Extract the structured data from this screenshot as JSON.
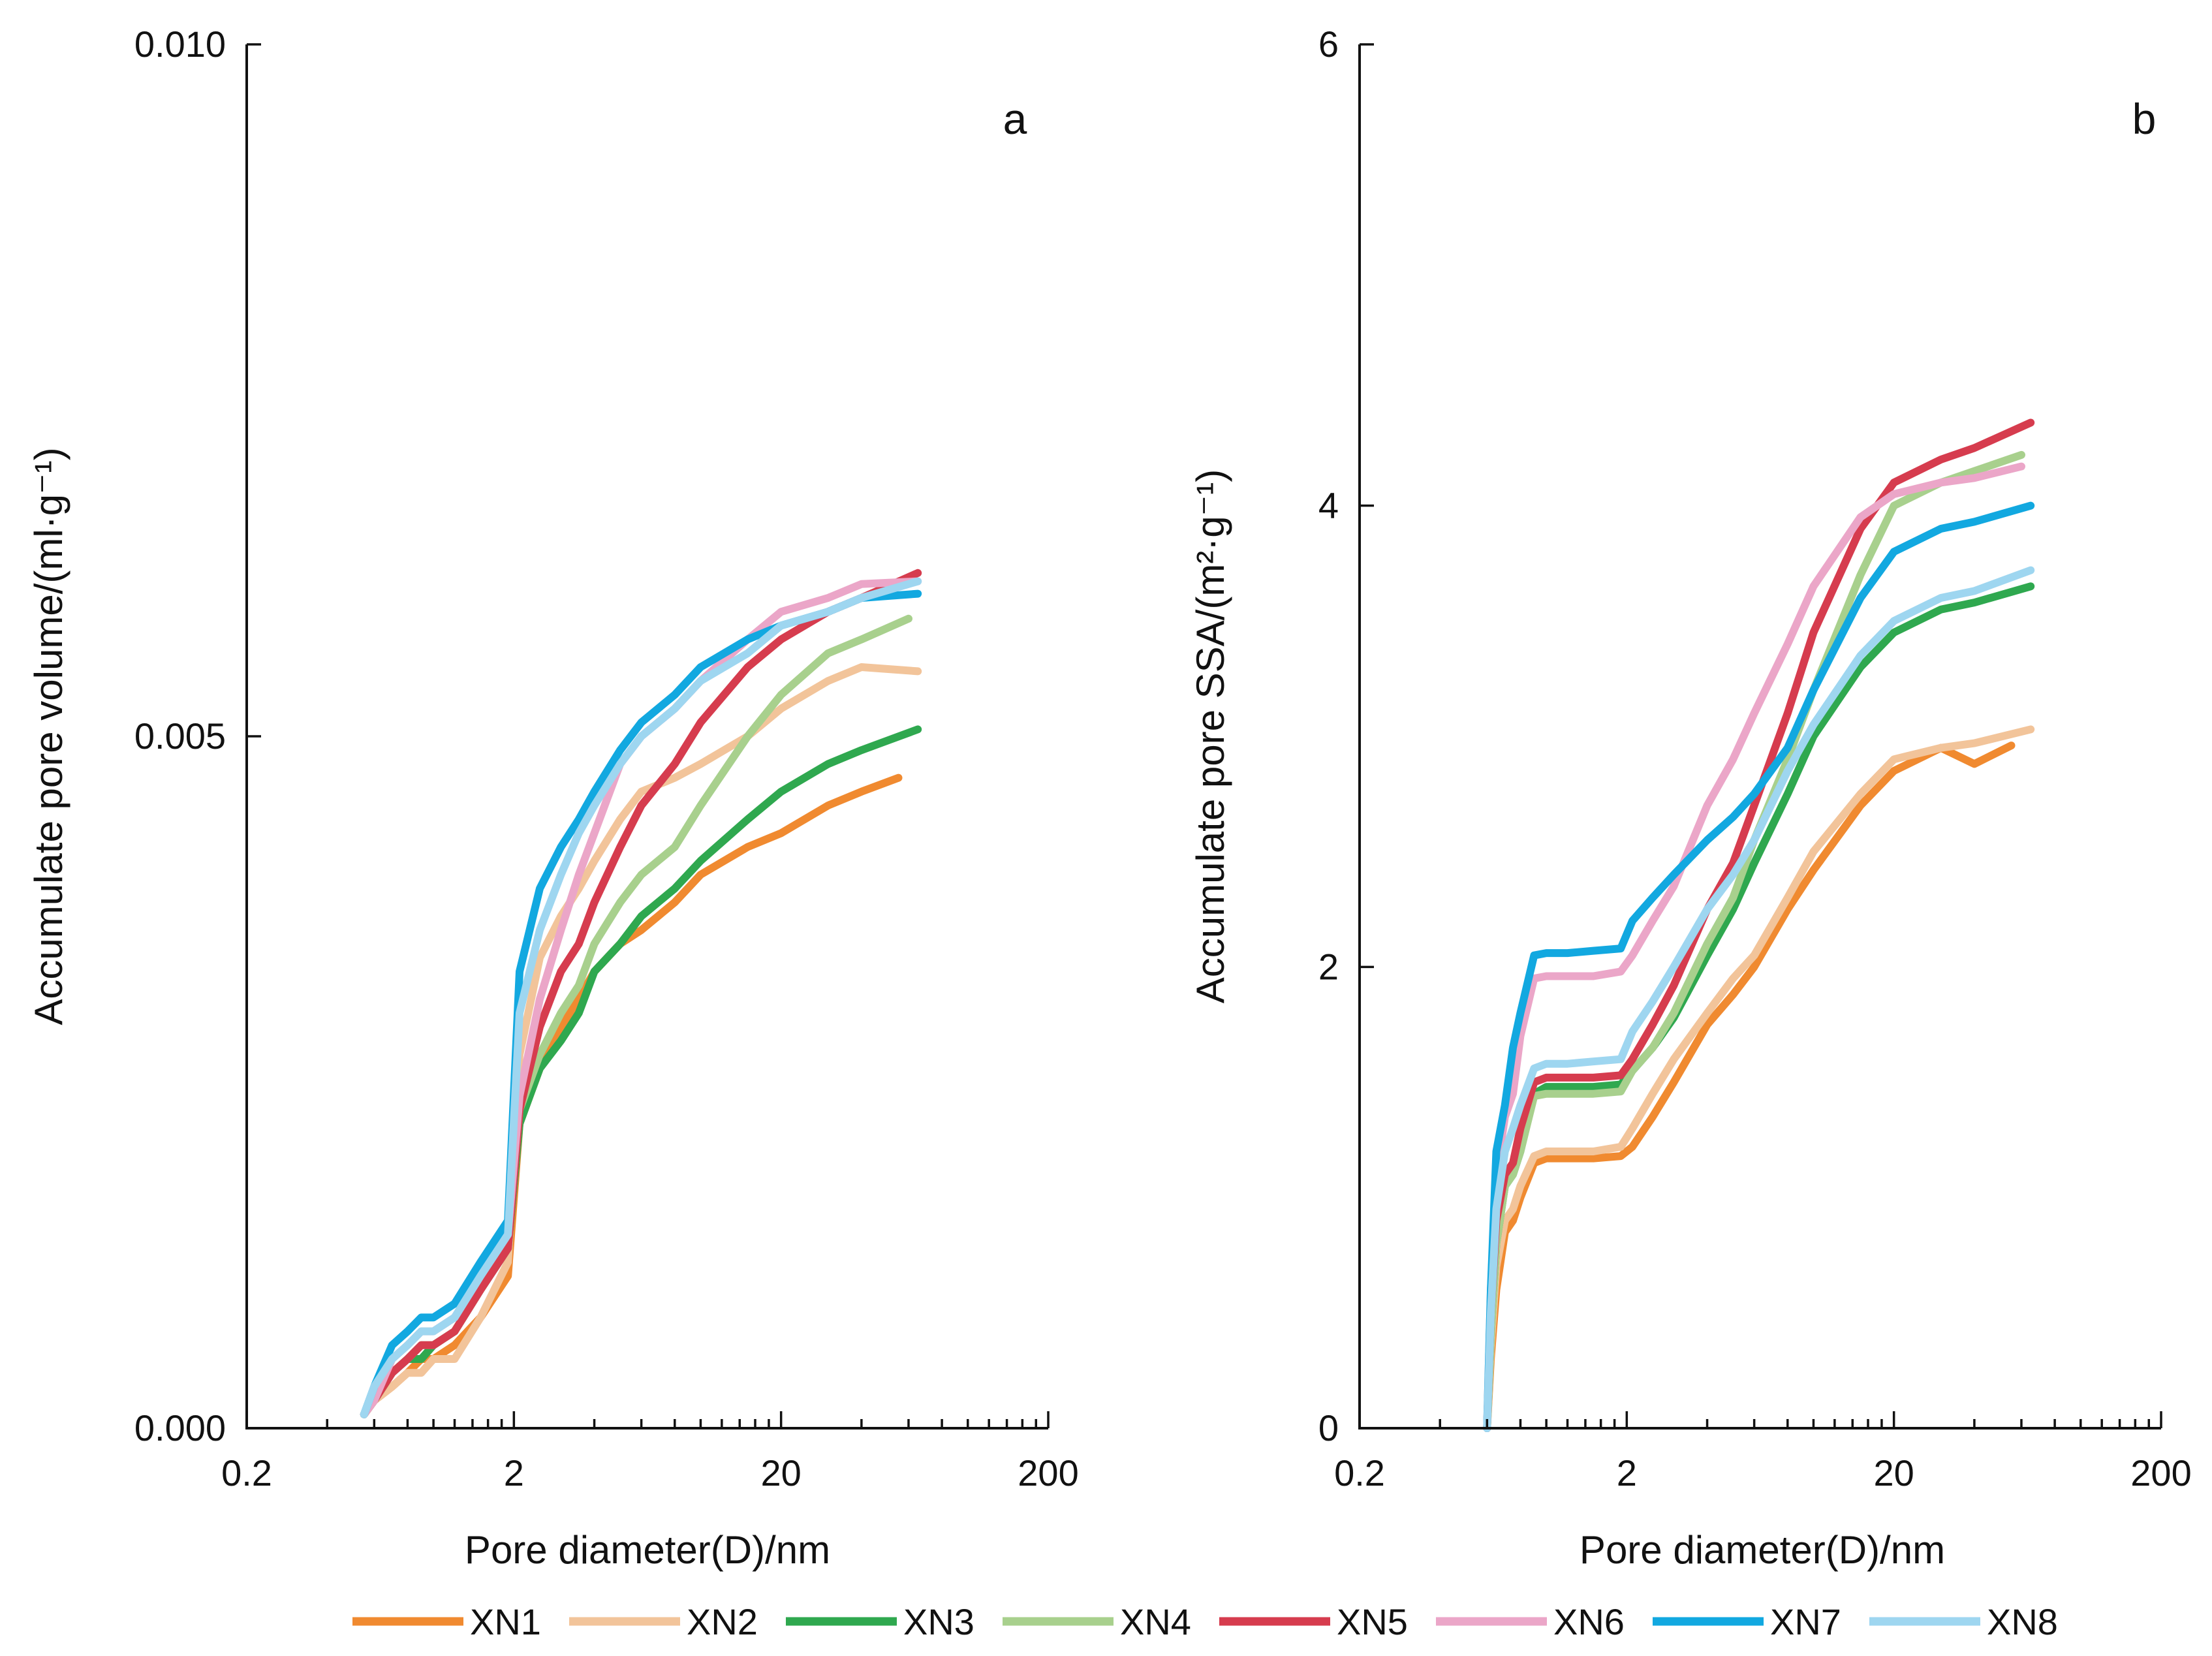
{
  "series_colors": {
    "XN1": "#F08A30",
    "XN2": "#F2C49A",
    "XN3": "#2FA84F",
    "XN4": "#A8D08D",
    "XN5": "#D63C4E",
    "XN6": "#EBA6C8",
    "XN7": "#12A8E0",
    "XN8": "#9ED6F0"
  },
  "chart_data": [
    {
      "type": "line",
      "panel": "a",
      "xscale": "log",
      "xlim": [
        0.2,
        200
      ],
      "ylim": [
        0,
        0.01
      ],
      "xticks": [
        0.2,
        2,
        20,
        200
      ],
      "xtick_labels": [
        "0.2",
        "2",
        "20",
        "200"
      ],
      "yticks": [
        0,
        0.005,
        0.01
      ],
      "ytick_labels": [
        "0.000",
        "0.005",
        "0.010"
      ],
      "xlabel": "Pore diameter(D)/nm",
      "ylabel": "Accumulate pore volume/(ml·g⁻¹)",
      "series": [
        {
          "name": "XN1",
          "x": [
            0.55,
            0.6,
            0.7,
            0.8,
            0.9,
            1.0,
            1.2,
            1.5,
            1.9,
            2.1,
            2.5,
            3.0,
            3.5,
            4.0,
            5.0,
            6.0,
            8.0,
            10,
            15,
            20,
            30,
            40,
            55
          ],
          "y": [
            0.0001,
            0.0002,
            0.0003,
            0.0004,
            0.0005,
            0.0005,
            0.0006,
            0.0008,
            0.0011,
            0.0022,
            0.0026,
            0.0029,
            0.0031,
            0.0033,
            0.0035,
            0.0036,
            0.0038,
            0.004,
            0.0042,
            0.0043,
            0.0045,
            0.0046,
            0.0047
          ]
        },
        {
          "name": "XN2",
          "x": [
            0.55,
            0.6,
            0.7,
            0.8,
            0.9,
            1.0,
            1.2,
            1.5,
            1.9,
            2.1,
            2.5,
            3.0,
            3.5,
            4.0,
            5.0,
            6.0,
            8.0,
            10,
            15,
            20,
            30,
            40,
            65
          ],
          "y": [
            0.0001,
            0.0002,
            0.0003,
            0.0004,
            0.0004,
            0.0005,
            0.0005,
            0.0008,
            0.0012,
            0.0027,
            0.0034,
            0.0037,
            0.0039,
            0.0041,
            0.0044,
            0.0046,
            0.0047,
            0.0048,
            0.005,
            0.0052,
            0.0054,
            0.0055,
            0.00547
          ]
        },
        {
          "name": "XN3",
          "x": [
            0.55,
            0.6,
            0.7,
            0.8,
            0.9,
            1.0,
            1.2,
            1.5,
            1.9,
            2.1,
            2.5,
            3.0,
            3.5,
            4.0,
            5.0,
            6.0,
            8.0,
            10,
            15,
            20,
            30,
            40,
            65
          ],
          "y": [
            0.0001,
            0.0002,
            0.0004,
            0.0005,
            0.0005,
            0.0006,
            0.0007,
            0.001,
            0.0013,
            0.0022,
            0.0026,
            0.0028,
            0.003,
            0.0033,
            0.0035,
            0.0037,
            0.0039,
            0.0041,
            0.0044,
            0.0046,
            0.0048,
            0.0049,
            0.00505
          ]
        },
        {
          "name": "XN4",
          "x": [
            0.55,
            0.6,
            0.7,
            0.8,
            0.9,
            1.0,
            1.2,
            1.5,
            1.9,
            2.1,
            2.5,
            3.0,
            3.5,
            4.0,
            5.0,
            6.0,
            8.0,
            10,
            15,
            20,
            30,
            40,
            60
          ],
          "y": [
            0.0001,
            0.0002,
            0.0004,
            0.0005,
            0.0006,
            0.0006,
            0.0007,
            0.001,
            0.0013,
            0.0023,
            0.0027,
            0.003,
            0.0032,
            0.0035,
            0.0038,
            0.004,
            0.0042,
            0.0045,
            0.005,
            0.0053,
            0.0056,
            0.0057,
            0.00585
          ]
        },
        {
          "name": "XN5",
          "x": [
            0.55,
            0.6,
            0.7,
            0.8,
            0.9,
            1.0,
            1.2,
            1.5,
            1.9,
            2.1,
            2.5,
            3.0,
            3.5,
            4.0,
            5.0,
            6.0,
            8.0,
            10,
            15,
            20,
            30,
            40,
            65
          ],
          "y": [
            0.0001,
            0.0002,
            0.0004,
            0.0005,
            0.0006,
            0.0006,
            0.0007,
            0.001,
            0.0013,
            0.0023,
            0.0029,
            0.0033,
            0.0035,
            0.0038,
            0.0042,
            0.0045,
            0.0048,
            0.0051,
            0.0055,
            0.0057,
            0.0059,
            0.006,
            0.00618
          ]
        },
        {
          "name": "XN6",
          "x": [
            0.55,
            0.6,
            0.7,
            0.8,
            0.9,
            1.0,
            1.2,
            1.5,
            1.9,
            2.1,
            2.5,
            3.0,
            3.5,
            4.0,
            5.0,
            6.0,
            8.0,
            10,
            15,
            20,
            30,
            40,
            65
          ],
          "y": [
            0.0001,
            0.0002,
            0.0005,
            0.0006,
            0.0007,
            0.0007,
            0.0008,
            0.0011,
            0.0014,
            0.0024,
            0.0031,
            0.0036,
            0.004,
            0.0043,
            0.0048,
            0.005,
            0.0052,
            0.0054,
            0.0057,
            0.0059,
            0.006,
            0.0061,
            0.00612
          ]
        },
        {
          "name": "XN7",
          "x": [
            0.55,
            0.6,
            0.7,
            0.8,
            0.9,
            1.0,
            1.2,
            1.5,
            1.9,
            2.1,
            2.5,
            3.0,
            3.5,
            4.0,
            5.0,
            6.0,
            8.0,
            10,
            15,
            20,
            30,
            40,
            65
          ],
          "y": [
            0.0001,
            0.0003,
            0.0006,
            0.0007,
            0.0008,
            0.0008,
            0.0009,
            0.0012,
            0.0015,
            0.0033,
            0.0039,
            0.0042,
            0.0044,
            0.0046,
            0.0049,
            0.0051,
            0.0053,
            0.0055,
            0.0057,
            0.0058,
            0.0059,
            0.006,
            0.00603
          ]
        },
        {
          "name": "XN8",
          "x": [
            0.55,
            0.6,
            0.7,
            0.8,
            0.9,
            1.0,
            1.2,
            1.5,
            1.9,
            2.1,
            2.5,
            3.0,
            3.5,
            4.0,
            5.0,
            6.0,
            8.0,
            10,
            15,
            20,
            30,
            40,
            65
          ],
          "y": [
            0.0001,
            0.0003,
            0.0005,
            0.0006,
            0.0007,
            0.0007,
            0.0008,
            0.0011,
            0.0014,
            0.003,
            0.0036,
            0.004,
            0.0043,
            0.0045,
            0.0048,
            0.005,
            0.0052,
            0.0054,
            0.0056,
            0.0058,
            0.0059,
            0.006,
            0.00612
          ]
        }
      ]
    },
    {
      "type": "line",
      "panel": "b",
      "xscale": "log",
      "xlim": [
        0.2,
        200
      ],
      "ylim": [
        0,
        6
      ],
      "xticks": [
        0.2,
        2,
        20,
        200
      ],
      "xtick_labels": [
        "0.2",
        "2",
        "20",
        "200"
      ],
      "yticks": [
        0,
        2,
        4,
        6
      ],
      "ytick_labels": [
        "0",
        "2",
        "4",
        "6"
      ],
      "xlabel": "Pore diameter(D)/nm",
      "ylabel": "Accumulate pore SSA/(m²·g⁻¹)",
      "series": [
        {
          "name": "XN1",
          "x": [
            0.6,
            0.62,
            0.65,
            0.7,
            0.75,
            0.8,
            0.9,
            1.0,
            1.2,
            1.5,
            1.9,
            2.1,
            2.5,
            3.0,
            4.0,
            5.0,
            6.0,
            8.0,
            10,
            15,
            20,
            30,
            40,
            55
          ],
          "y": [
            0.0,
            0.3,
            0.6,
            0.85,
            0.9,
            1.0,
            1.15,
            1.17,
            1.17,
            1.17,
            1.18,
            1.22,
            1.35,
            1.5,
            1.75,
            1.88,
            2.0,
            2.25,
            2.42,
            2.7,
            2.85,
            2.95,
            2.88,
            2.96
          ]
        },
        {
          "name": "XN2",
          "x": [
            0.6,
            0.62,
            0.65,
            0.7,
            0.75,
            0.8,
            0.9,
            1.0,
            1.2,
            1.5,
            1.9,
            2.1,
            2.5,
            3.0,
            4.0,
            5.0,
            6.0,
            8.0,
            10,
            15,
            20,
            30,
            40,
            65
          ],
          "y": [
            0.0,
            0.35,
            0.7,
            0.9,
            0.95,
            1.05,
            1.18,
            1.2,
            1.2,
            1.2,
            1.22,
            1.3,
            1.45,
            1.6,
            1.8,
            1.95,
            2.05,
            2.3,
            2.5,
            2.75,
            2.9,
            2.95,
            2.97,
            3.03
          ]
        },
        {
          "name": "XN3",
          "x": [
            0.6,
            0.62,
            0.65,
            0.7,
            0.75,
            0.8,
            0.9,
            1.0,
            1.2,
            1.5,
            1.9,
            2.1,
            2.5,
            3.0,
            4.0,
            5.0,
            6.0,
            8.0,
            10,
            15,
            20,
            30,
            40,
            65
          ],
          "y": [
            0.0,
            0.4,
            0.8,
            1.05,
            1.1,
            1.2,
            1.45,
            1.48,
            1.48,
            1.48,
            1.49,
            1.55,
            1.65,
            1.78,
            2.05,
            2.25,
            2.45,
            2.75,
            3.0,
            3.3,
            3.45,
            3.55,
            3.58,
            3.65
          ]
        },
        {
          "name": "XN4",
          "x": [
            0.6,
            0.62,
            0.65,
            0.7,
            0.75,
            0.8,
            0.9,
            1.0,
            1.2,
            1.5,
            1.9,
            2.1,
            2.5,
            3.0,
            4.0,
            5.0,
            6.0,
            8.0,
            10,
            15,
            20,
            30,
            40,
            60
          ],
          "y": [
            0.0,
            0.4,
            0.8,
            1.05,
            1.1,
            1.2,
            1.44,
            1.45,
            1.45,
            1.45,
            1.46,
            1.55,
            1.65,
            1.8,
            2.1,
            2.3,
            2.55,
            2.9,
            3.2,
            3.7,
            4.0,
            4.1,
            4.15,
            4.22
          ]
        },
        {
          "name": "XN5",
          "x": [
            0.6,
            0.62,
            0.65,
            0.7,
            0.75,
            0.8,
            0.9,
            1.0,
            1.2,
            1.5,
            1.9,
            2.1,
            2.5,
            3.0,
            4.0,
            5.0,
            6.0,
            8.0,
            10,
            15,
            20,
            30,
            40,
            65
          ],
          "y": [
            0.0,
            0.5,
            0.9,
            1.1,
            1.15,
            1.3,
            1.5,
            1.52,
            1.52,
            1.52,
            1.53,
            1.6,
            1.75,
            1.92,
            2.25,
            2.45,
            2.7,
            3.1,
            3.45,
            3.9,
            4.1,
            4.2,
            4.25,
            4.36
          ]
        },
        {
          "name": "XN6",
          "x": [
            0.6,
            0.62,
            0.65,
            0.7,
            0.75,
            0.8,
            0.9,
            1.0,
            1.2,
            1.5,
            1.9,
            2.1,
            2.5,
            3.0,
            4.0,
            5.0,
            6.0,
            8.0,
            10,
            15,
            20,
            30,
            40,
            60
          ],
          "y": [
            0.0,
            0.6,
            1.1,
            1.35,
            1.45,
            1.7,
            1.95,
            1.96,
            1.96,
            1.96,
            1.98,
            2.05,
            2.2,
            2.35,
            2.7,
            2.9,
            3.1,
            3.4,
            3.65,
            3.95,
            4.05,
            4.1,
            4.12,
            4.17
          ]
        },
        {
          "name": "XN7",
          "x": [
            0.6,
            0.62,
            0.65,
            0.7,
            0.75,
            0.8,
            0.9,
            1.0,
            1.2,
            1.5,
            1.9,
            2.1,
            2.5,
            3.0,
            4.0,
            5.0,
            6.0,
            8.0,
            10,
            15,
            20,
            30,
            40,
            65
          ],
          "y": [
            0.0,
            0.6,
            1.2,
            1.4,
            1.65,
            1.8,
            2.05,
            2.06,
            2.06,
            2.07,
            2.08,
            2.2,
            2.3,
            2.4,
            2.55,
            2.65,
            2.75,
            2.95,
            3.2,
            3.6,
            3.8,
            3.9,
            3.93,
            4.0
          ]
        },
        {
          "name": "XN8",
          "x": [
            0.6,
            0.62,
            0.65,
            0.7,
            0.75,
            0.8,
            0.9,
            1.0,
            1.2,
            1.5,
            1.9,
            2.1,
            2.5,
            3.0,
            4.0,
            5.0,
            6.0,
            8.0,
            10,
            15,
            20,
            30,
            40,
            65
          ],
          "y": [
            0.0,
            0.5,
            0.95,
            1.2,
            1.3,
            1.4,
            1.56,
            1.58,
            1.58,
            1.59,
            1.6,
            1.72,
            1.85,
            2.0,
            2.25,
            2.4,
            2.55,
            2.85,
            3.05,
            3.35,
            3.5,
            3.6,
            3.63,
            3.72
          ]
        }
      ]
    }
  ],
  "panels": {
    "a": {
      "letter": "a"
    },
    "b": {
      "letter": "b"
    }
  },
  "legend": {
    "items": [
      "XN1",
      "XN2",
      "XN3",
      "XN4",
      "XN5",
      "XN6",
      "XN7",
      "XN8"
    ]
  }
}
